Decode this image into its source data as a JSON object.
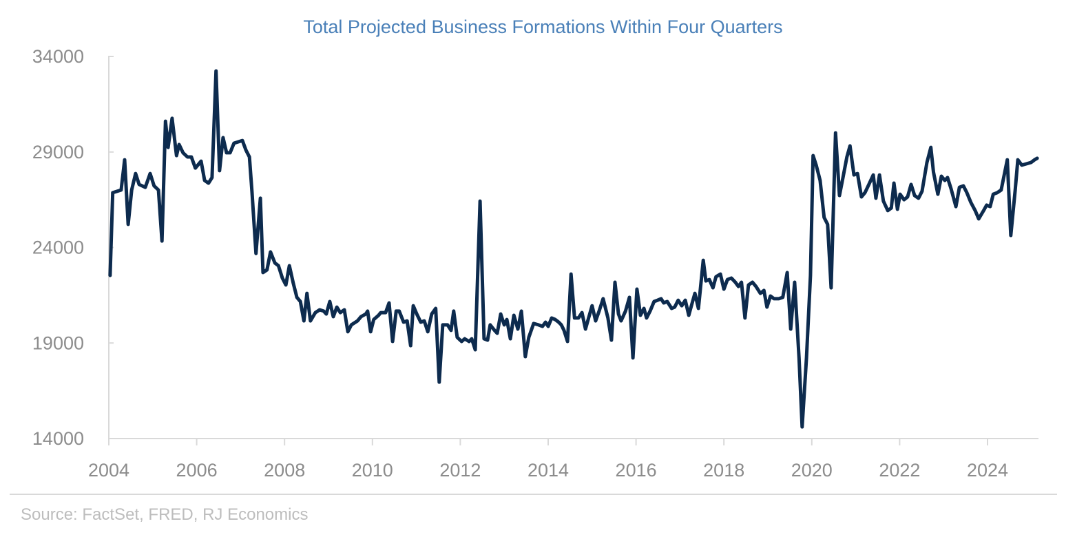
{
  "chart_data": {
    "type": "line",
    "title": "Total Projected Business Formations Within Four Quarters",
    "xlabel": "",
    "ylabel": "",
    "xlim": [
      2004,
      2025.2
    ],
    "ylim": [
      14000,
      34000
    ],
    "x_ticks": [
      "2004",
      "2006",
      "2008",
      "2010",
      "2012",
      "2014",
      "2016",
      "2018",
      "2020",
      "2022",
      "2024"
    ],
    "y_ticks": [
      "34000",
      "29000",
      "24000",
      "19000",
      "14000"
    ],
    "grid": false,
    "line_color": "#0d2b4e",
    "title_color": "#4a80b8",
    "series": [
      {
        "points": [
          [
            2004.03,
            22540
          ],
          [
            2004.09,
            26870
          ],
          [
            2004.28,
            27010
          ],
          [
            2004.36,
            28590
          ],
          [
            2004.44,
            25210
          ],
          [
            2004.52,
            27010
          ],
          [
            2004.61,
            27870
          ],
          [
            2004.69,
            27300
          ],
          [
            2004.83,
            27150
          ],
          [
            2004.94,
            27870
          ],
          [
            2005.03,
            27230
          ],
          [
            2005.13,
            27010
          ],
          [
            2005.21,
            24340
          ],
          [
            2005.29,
            30610
          ],
          [
            2005.35,
            29240
          ],
          [
            2005.44,
            30760
          ],
          [
            2005.54,
            28810
          ],
          [
            2005.6,
            29390
          ],
          [
            2005.69,
            28960
          ],
          [
            2005.79,
            28740
          ],
          [
            2005.88,
            28740
          ],
          [
            2005.97,
            28160
          ],
          [
            2006.1,
            28520
          ],
          [
            2006.18,
            27510
          ],
          [
            2006.27,
            27370
          ],
          [
            2006.35,
            27660
          ],
          [
            2006.44,
            33240
          ],
          [
            2006.52,
            28020
          ],
          [
            2006.6,
            29750
          ],
          [
            2006.68,
            28960
          ],
          [
            2006.76,
            28960
          ],
          [
            2006.85,
            29460
          ],
          [
            2007.04,
            29600
          ],
          [
            2007.12,
            29100
          ],
          [
            2007.2,
            28740
          ],
          [
            2007.26,
            26870
          ],
          [
            2007.35,
            23690
          ],
          [
            2007.45,
            26580
          ],
          [
            2007.51,
            22690
          ],
          [
            2007.6,
            22830
          ],
          [
            2007.68,
            23770
          ],
          [
            2007.78,
            23190
          ],
          [
            2007.86,
            23050
          ],
          [
            2007.95,
            22400
          ],
          [
            2008.03,
            22040
          ],
          [
            2008.11,
            23050
          ],
          [
            2008.2,
            22110
          ],
          [
            2008.28,
            21390
          ],
          [
            2008.36,
            21170
          ],
          [
            2008.44,
            20160
          ],
          [
            2008.51,
            21600
          ],
          [
            2008.59,
            20160
          ],
          [
            2008.7,
            20590
          ],
          [
            2008.8,
            20740
          ],
          [
            2008.89,
            20670
          ],
          [
            2008.95,
            20520
          ],
          [
            2009.03,
            21170
          ],
          [
            2009.11,
            20380
          ],
          [
            2009.19,
            20880
          ],
          [
            2009.27,
            20590
          ],
          [
            2009.36,
            20740
          ],
          [
            2009.44,
            19590
          ],
          [
            2009.52,
            19950
          ],
          [
            2009.66,
            20160
          ],
          [
            2009.74,
            20380
          ],
          [
            2009.85,
            20520
          ],
          [
            2009.89,
            20670
          ],
          [
            2009.96,
            19590
          ],
          [
            2010.03,
            20230
          ],
          [
            2010.14,
            20450
          ],
          [
            2010.19,
            20590
          ],
          [
            2010.3,
            20590
          ],
          [
            2010.38,
            21100
          ],
          [
            2010.46,
            19080
          ],
          [
            2010.54,
            20670
          ],
          [
            2010.61,
            20670
          ],
          [
            2010.71,
            20090
          ],
          [
            2010.79,
            20160
          ],
          [
            2010.87,
            18860
          ],
          [
            2010.93,
            20950
          ],
          [
            2011.01,
            20520
          ],
          [
            2011.1,
            20090
          ],
          [
            2011.18,
            20160
          ],
          [
            2011.26,
            19590
          ],
          [
            2011.35,
            20520
          ],
          [
            2011.44,
            20810
          ],
          [
            2011.52,
            16950
          ],
          [
            2011.6,
            19950
          ],
          [
            2011.71,
            19950
          ],
          [
            2011.79,
            19660
          ],
          [
            2011.85,
            20670
          ],
          [
            2011.93,
            19300
          ],
          [
            2012.03,
            19080
          ],
          [
            2012.1,
            19220
          ],
          [
            2012.2,
            19080
          ],
          [
            2012.26,
            19220
          ],
          [
            2012.34,
            18650
          ],
          [
            2012.45,
            26430
          ],
          [
            2012.54,
            19220
          ],
          [
            2012.62,
            19150
          ],
          [
            2012.68,
            19950
          ],
          [
            2012.78,
            19660
          ],
          [
            2012.84,
            19510
          ],
          [
            2012.92,
            20520
          ],
          [
            2013.0,
            19950
          ],
          [
            2013.06,
            20230
          ],
          [
            2013.14,
            19220
          ],
          [
            2013.22,
            20450
          ],
          [
            2013.31,
            19730
          ],
          [
            2013.39,
            20670
          ],
          [
            2013.48,
            18290
          ],
          [
            2013.56,
            19300
          ],
          [
            2013.67,
            20020
          ],
          [
            2013.78,
            19950
          ],
          [
            2013.87,
            19870
          ],
          [
            2013.94,
            20090
          ],
          [
            2014.0,
            19870
          ],
          [
            2014.08,
            20310
          ],
          [
            2014.16,
            20230
          ],
          [
            2014.24,
            20090
          ],
          [
            2014.3,
            19950
          ],
          [
            2014.36,
            19660
          ],
          [
            2014.44,
            19080
          ],
          [
            2014.52,
            22610
          ],
          [
            2014.6,
            20310
          ],
          [
            2014.69,
            20310
          ],
          [
            2014.77,
            20590
          ],
          [
            2014.85,
            19730
          ],
          [
            2014.92,
            20310
          ],
          [
            2015.0,
            20950
          ],
          [
            2015.08,
            20160
          ],
          [
            2015.16,
            20670
          ],
          [
            2015.25,
            21320
          ],
          [
            2015.36,
            20310
          ],
          [
            2015.44,
            19150
          ],
          [
            2015.52,
            22180
          ],
          [
            2015.6,
            20520
          ],
          [
            2015.66,
            20160
          ],
          [
            2015.76,
            20670
          ],
          [
            2015.85,
            21390
          ],
          [
            2015.93,
            18220
          ],
          [
            2016.02,
            21820
          ],
          [
            2016.1,
            20450
          ],
          [
            2016.18,
            20810
          ],
          [
            2016.24,
            20310
          ],
          [
            2016.32,
            20670
          ],
          [
            2016.41,
            21170
          ],
          [
            2016.49,
            21240
          ],
          [
            2016.57,
            21320
          ],
          [
            2016.63,
            21100
          ],
          [
            2016.71,
            21170
          ],
          [
            2016.81,
            20810
          ],
          [
            2016.88,
            20880
          ],
          [
            2016.96,
            21240
          ],
          [
            2017.04,
            20950
          ],
          [
            2017.12,
            21240
          ],
          [
            2017.2,
            20450
          ],
          [
            2017.26,
            20950
          ],
          [
            2017.34,
            21600
          ],
          [
            2017.42,
            20810
          ],
          [
            2017.53,
            23330
          ],
          [
            2017.59,
            22250
          ],
          [
            2017.67,
            22320
          ],
          [
            2017.75,
            21890
          ],
          [
            2017.82,
            22470
          ],
          [
            2017.92,
            22610
          ],
          [
            2018.0,
            21820
          ],
          [
            2018.08,
            22320
          ],
          [
            2018.17,
            22400
          ],
          [
            2018.26,
            22180
          ],
          [
            2018.33,
            21960
          ],
          [
            2018.4,
            22180
          ],
          [
            2018.48,
            20310
          ],
          [
            2018.56,
            22040
          ],
          [
            2018.65,
            22180
          ],
          [
            2018.73,
            21960
          ],
          [
            2018.83,
            21600
          ],
          [
            2018.91,
            21750
          ],
          [
            2018.98,
            20880
          ],
          [
            2019.06,
            21460
          ],
          [
            2019.14,
            21320
          ],
          [
            2019.25,
            21320
          ],
          [
            2019.34,
            21390
          ],
          [
            2019.44,
            22690
          ],
          [
            2019.52,
            19730
          ],
          [
            2019.61,
            22180
          ],
          [
            2019.71,
            18220
          ],
          [
            2019.78,
            14610
          ],
          [
            2019.88,
            18220
          ],
          [
            2019.97,
            22540
          ],
          [
            2020.03,
            28810
          ],
          [
            2020.1,
            28310
          ],
          [
            2020.19,
            27510
          ],
          [
            2020.28,
            25570
          ],
          [
            2020.36,
            25210
          ],
          [
            2020.44,
            21890
          ],
          [
            2020.54,
            30000
          ],
          [
            2020.63,
            26720
          ],
          [
            2020.71,
            27660
          ],
          [
            2020.8,
            28740
          ],
          [
            2020.87,
            29320
          ],
          [
            2020.96,
            27800
          ],
          [
            2021.04,
            27870
          ],
          [
            2021.13,
            26650
          ],
          [
            2021.21,
            26870
          ],
          [
            2021.3,
            27300
          ],
          [
            2021.4,
            27800
          ],
          [
            2021.46,
            26580
          ],
          [
            2021.54,
            27800
          ],
          [
            2021.63,
            26430
          ],
          [
            2021.73,
            25930
          ],
          [
            2021.81,
            26070
          ],
          [
            2021.87,
            27370
          ],
          [
            2021.95,
            26000
          ],
          [
            2022.01,
            26790
          ],
          [
            2022.1,
            26500
          ],
          [
            2022.18,
            26650
          ],
          [
            2022.26,
            27300
          ],
          [
            2022.34,
            26720
          ],
          [
            2022.43,
            26580
          ],
          [
            2022.51,
            26940
          ],
          [
            2022.62,
            28450
          ],
          [
            2022.71,
            29240
          ],
          [
            2022.77,
            27950
          ],
          [
            2022.87,
            26790
          ],
          [
            2022.95,
            27730
          ],
          [
            2023.03,
            27510
          ],
          [
            2023.09,
            27660
          ],
          [
            2023.17,
            27080
          ],
          [
            2023.28,
            26140
          ],
          [
            2023.36,
            27150
          ],
          [
            2023.45,
            27230
          ],
          [
            2023.53,
            26870
          ],
          [
            2023.62,
            26360
          ],
          [
            2023.72,
            25930
          ],
          [
            2023.8,
            25500
          ],
          [
            2023.91,
            25930
          ],
          [
            2023.98,
            26220
          ],
          [
            2024.06,
            26140
          ],
          [
            2024.13,
            26790
          ],
          [
            2024.22,
            26870
          ],
          [
            2024.31,
            27010
          ],
          [
            2024.45,
            28590
          ],
          [
            2024.53,
            24630
          ],
          [
            2024.63,
            27010
          ],
          [
            2024.69,
            28590
          ],
          [
            2024.78,
            28310
          ],
          [
            2024.99,
            28450
          ],
          [
            2025.07,
            28590
          ],
          [
            2025.13,
            28670
          ]
        ]
      }
    ]
  },
  "source": "Source: FactSet, FRED, RJ Economics"
}
